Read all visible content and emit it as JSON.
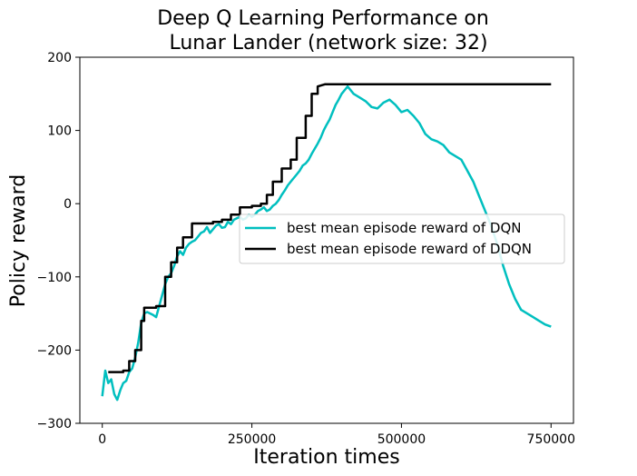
{
  "chart_data": {
    "type": "line",
    "title_lines": [
      "Deep Q Learning Performance on",
      "Lunar Lander (network size: 32)"
    ],
    "xlabel": "Iteration times",
    "ylabel": "Policy reward",
    "xlim": [
      -37500,
      787500
    ],
    "ylim": [
      -300,
      200
    ],
    "xticks": [
      0,
      250000,
      500000,
      750000
    ],
    "xtick_labels": [
      "0",
      "250000",
      "500000",
      "750000"
    ],
    "yticks": [
      -300,
      -200,
      -100,
      0,
      100,
      200
    ],
    "ytick_labels": [
      "−300",
      "−200",
      "−100",
      "0",
      "100",
      "200"
    ],
    "grid": false,
    "legend_position": "center-right",
    "series": [
      {
        "name": "best mean episode reward of DQN",
        "color": "#00bfbf",
        "x": [
          0,
          5000,
          10000,
          15000,
          20000,
          25000,
          30000,
          35000,
          40000,
          45000,
          50000,
          55000,
          60000,
          65000,
          70000,
          75000,
          80000,
          85000,
          90000,
          95000,
          100000,
          105000,
          110000,
          115000,
          120000,
          125000,
          130000,
          135000,
          140000,
          145000,
          150000,
          155000,
          160000,
          165000,
          170000,
          175000,
          180000,
          185000,
          190000,
          195000,
          200000,
          205000,
          210000,
          215000,
          220000,
          225000,
          230000,
          235000,
          240000,
          245000,
          250000,
          255000,
          260000,
          265000,
          270000,
          275000,
          280000,
          285000,
          290000,
          295000,
          300000,
          305000,
          310000,
          315000,
          320000,
          325000,
          330000,
          335000,
          340000,
          345000,
          350000,
          355000,
          360000,
          365000,
          370000,
          375000,
          380000,
          385000,
          390000,
          395000,
          400000,
          410000,
          420000,
          430000,
          440000,
          450000,
          460000,
          470000,
          480000,
          490000,
          500000,
          510000,
          520000,
          530000,
          540000,
          550000,
          560000,
          570000,
          580000,
          590000,
          600000,
          610000,
          620000,
          630000,
          640000,
          650000,
          660000,
          670000,
          680000,
          690000,
          700000,
          710000,
          720000,
          730000,
          740000,
          750000
        ],
        "values": [
          -263,
          -228,
          -245,
          -240,
          -260,
          -268,
          -255,
          -245,
          -242,
          -230,
          -225,
          -210,
          -190,
          -163,
          -150,
          -148,
          -150,
          -152,
          -155,
          -140,
          -125,
          -110,
          -100,
          -95,
          -85,
          -72,
          -65,
          -70,
          -60,
          -55,
          -52,
          -50,
          -45,
          -40,
          -38,
          -32,
          -40,
          -35,
          -30,
          -28,
          -33,
          -32,
          -25,
          -28,
          -22,
          -20,
          -18,
          -22,
          -20,
          -15,
          -18,
          -15,
          -10,
          -8,
          -5,
          -10,
          -8,
          -3,
          0,
          5,
          12,
          18,
          25,
          30,
          35,
          40,
          45,
          52,
          55,
          60,
          68,
          75,
          82,
          90,
          100,
          108,
          115,
          125,
          135,
          142,
          150,
          160,
          150,
          145,
          140,
          132,
          130,
          138,
          142,
          135,
          125,
          128,
          120,
          110,
          95,
          88,
          85,
          80,
          70,
          65,
          60,
          45,
          30,
          10,
          -10,
          -30,
          -55,
          -85,
          -110,
          -130,
          -145,
          -150,
          -155,
          -160,
          -165,
          -168
        ]
      },
      {
        "name": "best mean episode reward of DDQN",
        "color": "#000000",
        "x": [
          10000,
          10000,
          35000,
          35000,
          45000,
          45000,
          55000,
          55000,
          65000,
          65000,
          70000,
          70000,
          90000,
          90000,
          105000,
          105000,
          115000,
          115000,
          125000,
          125000,
          135000,
          135000,
          150000,
          150000,
          165000,
          165000,
          185000,
          185000,
          200000,
          200000,
          215000,
          215000,
          230000,
          230000,
          250000,
          250000,
          265000,
          265000,
          275000,
          275000,
          285000,
          285000,
          300000,
          300000,
          315000,
          315000,
          325000,
          325000,
          340000,
          340000,
          350000,
          350000,
          360000,
          360000,
          372000,
          750000
        ],
        "values": [
          -230,
          -230,
          -230,
          -228,
          -228,
          -215,
          -215,
          -200,
          -200,
          -160,
          -160,
          -142,
          -142,
          -140,
          -140,
          -100,
          -100,
          -80,
          -80,
          -60,
          -60,
          -46,
          -46,
          -27,
          -27,
          -27,
          -27,
          -25,
          -25,
          -22,
          -22,
          -15,
          -15,
          -5,
          -5,
          -3,
          -3,
          0,
          0,
          12,
          12,
          30,
          30,
          48,
          48,
          60,
          60,
          90,
          90,
          120,
          120,
          150,
          150,
          160,
          163,
          163
        ]
      }
    ]
  }
}
